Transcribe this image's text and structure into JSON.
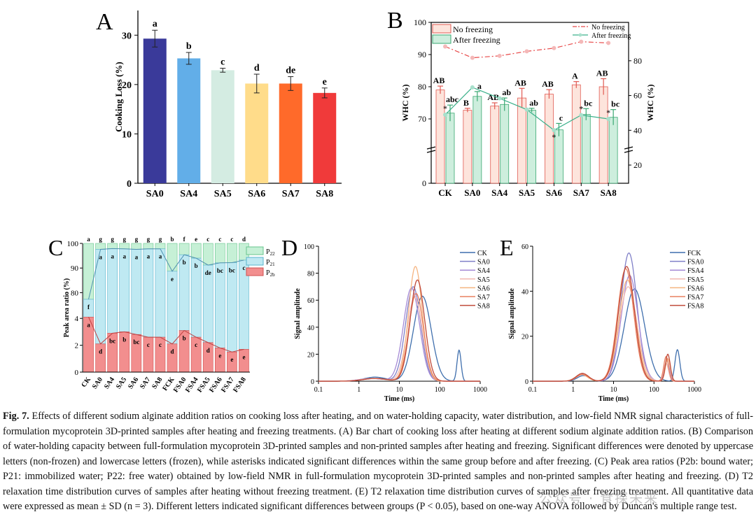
{
  "chart_data": [
    {
      "panel": "A",
      "type": "bar",
      "title": "",
      "xlabel": "",
      "ylabel": "Cooking Loss (%)",
      "ylim": [
        0,
        35
      ],
      "yticks": [
        "0",
        "10",
        "20",
        "30"
      ],
      "categories": [
        "SA0",
        "SA4",
        "SA5",
        "SA6",
        "SA7",
        "SA8"
      ],
      "values": [
        29.3,
        25.3,
        22.9,
        20.2,
        20.2,
        18.3
      ],
      "errors": [
        1.7,
        1.2,
        0.4,
        1.9,
        1.4,
        1.0
      ],
      "letters": [
        "a",
        "b",
        "c",
        "d",
        "de",
        "e"
      ],
      "colors": [
        "#3a3a9a",
        "#62aee8",
        "#d4ece2",
        "#ffdc8a",
        "#ff6a2a",
        "#f03a3a"
      ]
    },
    {
      "panel": "B",
      "type": "bar",
      "xlabel": "",
      "ylabel_left": "WHC (%)",
      "ylabel_right": "WHC (%)",
      "left_yticks": [
        "0",
        "70",
        "80",
        "90",
        "100"
      ],
      "right_yticks": [
        "20",
        "40",
        "60",
        "80"
      ],
      "categories": [
        "CK",
        "SA0",
        "SA4",
        "SA5",
        "SA6",
        "SA7",
        "SA8"
      ],
      "series": [
        {
          "name": "No freezing",
          "values": [
            79.0,
            72.7,
            74.0,
            76.5,
            77.7,
            80.6,
            80.0
          ],
          "errors": [
            1.2,
            0.6,
            1.0,
            3.0,
            1.4,
            1.0,
            2.5
          ],
          "letters": [
            "AB",
            "B",
            "AB",
            "AB",
            "AB",
            "A",
            "AB"
          ],
          "line": [
            92.5,
            89.0,
            89.6,
            91.0,
            92.0,
            94.0,
            93.6
          ]
        },
        {
          "name": "After freezing",
          "values": [
            71.8,
            77.0,
            74.5,
            72.7,
            66.6,
            71.4,
            70.5
          ],
          "errors": [
            2.5,
            1.5,
            2.0,
            0.6,
            2.0,
            1.8,
            2.4
          ],
          "letters": [
            "abc",
            "a",
            "ab",
            "ab",
            "c",
            "bc",
            "bc"
          ],
          "line": [
            71.3,
            79.8,
            76.4,
            72.9,
            66.5,
            71.2,
            70.0
          ]
        }
      ],
      "line_legend": [
        "No freezing",
        "After freezing"
      ],
      "asterisks": [
        "*",
        "",
        "",
        "",
        "*",
        "*",
        "*"
      ]
    },
    {
      "panel": "C",
      "type": "area",
      "ylabel": "Peak area ratio (%)",
      "yticks_upper": [
        "80",
        "90",
        "100"
      ],
      "yticks_lower": [
        "0",
        "2",
        "4"
      ],
      "categories": [
        "CK",
        "SA0",
        "SA4",
        "SA5",
        "SA6",
        "SA7",
        "SA8",
        "FCK",
        "FSA0",
        "FSA4",
        "FSA5",
        "FSA6",
        "FSA7",
        "FSA8"
      ],
      "series": [
        {
          "name": "P22",
          "label": "P",
          "sub": "22",
          "top_letters": [
            "a",
            "g",
            "g",
            "g",
            "g",
            "g",
            "g",
            "b",
            "f",
            "e",
            "c",
            "c",
            "c",
            "d"
          ]
        },
        {
          "name": "P21",
          "label": "P",
          "sub": "21",
          "values": [
            77.3,
            97.6,
            97.9,
            97.8,
            97.6,
            97.8,
            97.8,
            88.7,
            95.4,
            94.0,
            91.2,
            92.1,
            92.2,
            93.2
          ],
          "letters": [
            "f",
            "a",
            "a",
            "a",
            "a",
            "a",
            "a",
            "e",
            "b",
            "b",
            "de",
            "bc",
            "bc",
            "c"
          ]
        },
        {
          "name": "P2b",
          "label": "P",
          "sub": "2b",
          "values": [
            4.1,
            2.1,
            2.9,
            3.0,
            2.8,
            2.6,
            2.6,
            2.1,
            3.1,
            2.6,
            2.2,
            1.8,
            1.5,
            1.7
          ],
          "letters": [
            "a",
            "d",
            "bc",
            "b",
            "bc",
            "c",
            "c",
            "d",
            "b",
            "c",
            "d",
            "e",
            "e",
            "e"
          ]
        }
      ]
    },
    {
      "panel": "D",
      "type": "line",
      "xlabel": "Time (ms)",
      "ylabel": "Signal amplitude",
      "xscale": "log",
      "xlim": [
        0.1,
        1000
      ],
      "xticks": [
        "0.1",
        "1",
        "10",
        "100",
        "1000"
      ],
      "ylim": [
        0,
        100
      ],
      "yticks": [
        "0",
        "20",
        "40",
        "60",
        "80",
        "100"
      ],
      "series": [
        {
          "name": "CK",
          "color": "#3f6fad",
          "peak_x": 37,
          "peak_y": 63,
          "width": 0.22,
          "minor": [
            [
              300,
              23,
              0.05
            ],
            [
              2.5,
              3,
              0.28
            ]
          ]
        },
        {
          "name": "SA0",
          "color": "#8080c8",
          "peak_x": 22,
          "peak_y": 70,
          "width": 0.19,
          "minor": [
            [
              2.2,
              2,
              0.3
            ]
          ]
        },
        {
          "name": "SA4",
          "color": "#a58ad6",
          "peak_x": 20,
          "peak_y": 69,
          "width": 0.2,
          "minor": [
            [
              2.0,
              2,
              0.3
            ]
          ]
        },
        {
          "name": "SA5",
          "color": "#f2b8b0",
          "peak_x": 24,
          "peak_y": 62,
          "width": 0.19,
          "minor": [
            [
              2.3,
              2,
              0.3
            ]
          ]
        },
        {
          "name": "SA6",
          "color": "#f5b480",
          "peak_x": 25,
          "peak_y": 85,
          "width": 0.17,
          "minor": [
            [
              2.4,
              2,
              0.3
            ]
          ]
        },
        {
          "name": "SA7",
          "color": "#e98060",
          "peak_x": 26,
          "peak_y": 65,
          "width": 0.18,
          "minor": [
            [
              2.4,
              2,
              0.3
            ]
          ]
        },
        {
          "name": "SA8",
          "color": "#c04a3a",
          "peak_x": 28,
          "peak_y": 75,
          "width": 0.18,
          "minor": [
            [
              2.6,
              2,
              0.3
            ]
          ]
        }
      ]
    },
    {
      "panel": "E",
      "type": "line",
      "xlabel": "Time (ms)",
      "ylabel": "Signal amplitude",
      "xscale": "log",
      "xlim": [
        0.1,
        1000
      ],
      "xticks": [
        "0.1",
        "1",
        "10",
        "100",
        "1000"
      ],
      "ylim": [
        0,
        60
      ],
      "yticks": [
        "0",
        "20",
        "40",
        "60"
      ],
      "series": [
        {
          "name": "FCK",
          "color": "#3f6fad",
          "peak_x": 33,
          "peak_y": 41,
          "width": 0.25,
          "minor": [
            [
              380,
              14,
              0.06
            ],
            [
              1.8,
              2.5,
              0.15
            ]
          ]
        },
        {
          "name": "FSA0",
          "color": "#8080c8",
          "peak_x": 24,
          "peak_y": 57,
          "width": 0.2,
          "minor": [
            [
              200,
              8,
              0.06
            ],
            [
              1.7,
              3,
              0.15
            ]
          ]
        },
        {
          "name": "FSA4",
          "color": "#a58ad6",
          "peak_x": 25,
          "peak_y": 47,
          "width": 0.21,
          "minor": [
            [
              210,
              9,
              0.06
            ],
            [
              1.7,
              3,
              0.15
            ]
          ]
        },
        {
          "name": "FSA5",
          "color": "#f2b8b0",
          "peak_x": 23,
          "peak_y": 42,
          "width": 0.22,
          "minor": [
            [
              200,
              8,
              0.06
            ],
            [
              1.7,
              3,
              0.15
            ]
          ]
        },
        {
          "name": "FSA6",
          "color": "#f5b480",
          "peak_x": 22,
          "peak_y": 45,
          "width": 0.21,
          "minor": [
            [
              220,
              10,
              0.06
            ],
            [
              1.6,
              3,
              0.15
            ]
          ]
        },
        {
          "name": "FSA7",
          "color": "#e98060",
          "peak_x": 20,
          "peak_y": 50,
          "width": 0.2,
          "minor": [
            [
              200,
              11,
              0.06
            ],
            [
              1.7,
              3,
              0.15
            ]
          ]
        },
        {
          "name": "FSA8",
          "color": "#c04a3a",
          "peak_x": 21,
          "peak_y": 51,
          "width": 0.2,
          "minor": [
            [
              220,
              12,
              0.06
            ],
            [
              1.7,
              3.5,
              0.15
            ]
          ]
        }
      ]
    }
  ],
  "panel_labels": [
    "A",
    "B",
    "C",
    "D",
    "E"
  ],
  "caption": {
    "lead": "Fig. 7.",
    "text": "Effects of different sodium alginate addition ratios on cooking loss after heating, and on water-holding capacity, water distribution, and low-field NMR signal characteristics of full-formulation mycoprotein 3D-printed samples after heating and freezing treatments. (A) Bar chart of cooking loss after heating at different sodium alginate addition ratios. (B) Comparison of water-holding capacity between full-formulation mycoprotein 3D-printed samples and non-printed samples after heating and freezing. Significant differences were denoted by uppercase letters (non-frozen) and lowercase letters (frozen), while asterisks indicated significant differences within the same group before and after freezing. (C) Peak area ratios (P2b: bound water; P21: immobilized water; P22: free water) obtained by low-field NMR in full-formulation mycoprotein 3D-printed samples and non-printed samples after heating and freezing. (D) T2 relaxation time distribution curves of samples after heating without freezing treatment. (E) T2 relaxation time distribution curves of samples after freezing treatment. All quantitative data were expressed as mean ± SD (n = 3). Different letters indicated significant differences between groups (P < 0.05), based on one-way ANOVA followed by Duncan's multiple range test."
  },
  "watermark": "公众号 · 食探未来"
}
